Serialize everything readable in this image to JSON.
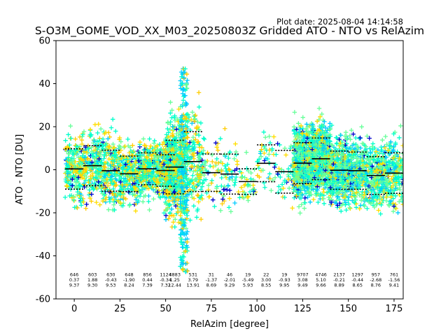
{
  "header": {
    "plot_date": "Plot date: 2025-08-04 14:14:58",
    "title": "S-O3M_GOME_VOD_XX_M03_20250803Z Gridded ATO - NTO vs RelAzim"
  },
  "chart_data": {
    "type": "scatter",
    "xlabel": "RelAzim [degree]",
    "ylabel": "ATO - NTO [DU]",
    "xlim": [
      -10,
      180
    ],
    "ylim": [
      -60,
      60
    ],
    "x_ticks": [
      0,
      25,
      50,
      75,
      100,
      125,
      150,
      175
    ],
    "y_ticks": [
      -60,
      -40,
      -20,
      0,
      20,
      40,
      60
    ],
    "grid": false,
    "marker": "+",
    "point_colors": [
      "#00ffcc",
      "#66ff99",
      "#ffdd00",
      "#0000cc",
      "#00ccff",
      "#ffcc00"
    ],
    "stat_color": "#000000",
    "bins": [
      {
        "center": 0,
        "count": "646",
        "mean": "0.37",
        "std": "9.37"
      },
      {
        "center": 10,
        "count": "603",
        "mean": "1.88",
        "std": "9.30"
      },
      {
        "center": 20,
        "count": "630",
        "mean": "-0.43",
        "std": "9.53"
      },
      {
        "center": 30,
        "count": "648",
        "mean": "-1.90",
        "std": "8.24"
      },
      {
        "center": 40,
        "count": "856",
        "mean": "0.44",
        "std": "7.39"
      },
      {
        "center": 50,
        "count": "1124",
        "mean": "-0.34",
        "std": "7.32"
      },
      {
        "center": 55,
        "count": "4883",
        "mean": "1.25",
        "std": "12.44"
      },
      {
        "center": 65,
        "count": "531",
        "mean": "3.79",
        "std": "13.91"
      },
      {
        "center": 75,
        "count": "31",
        "mean": "-1.37",
        "std": "8.69"
      },
      {
        "center": 85,
        "count": "46",
        "mean": "-2.01",
        "std": "9.29"
      },
      {
        "center": 95,
        "count": "19",
        "mean": "-5.49",
        "std": "5.93"
      },
      {
        "center": 105,
        "count": "22",
        "mean": "3.00",
        "std": "8.55"
      },
      {
        "center": 115,
        "count": "19",
        "mean": "-0.93",
        "std": "9.95"
      },
      {
        "center": 125,
        "count": "9707",
        "mean": "3.08",
        "std": "9.49"
      },
      {
        "center": 135,
        "count": "4746",
        "mean": "5.10",
        "std": "9.66"
      },
      {
        "center": 145,
        "count": "2137",
        "mean": "-0.21",
        "std": "8.89"
      },
      {
        "center": 155,
        "count": "1297",
        "mean": "-0.44",
        "std": "8.65"
      },
      {
        "center": 165,
        "count": "957",
        "mean": "-2.68",
        "std": "8.76"
      },
      {
        "center": 175,
        "count": "761",
        "mean": "-1.56",
        "std": "9.41"
      }
    ]
  }
}
